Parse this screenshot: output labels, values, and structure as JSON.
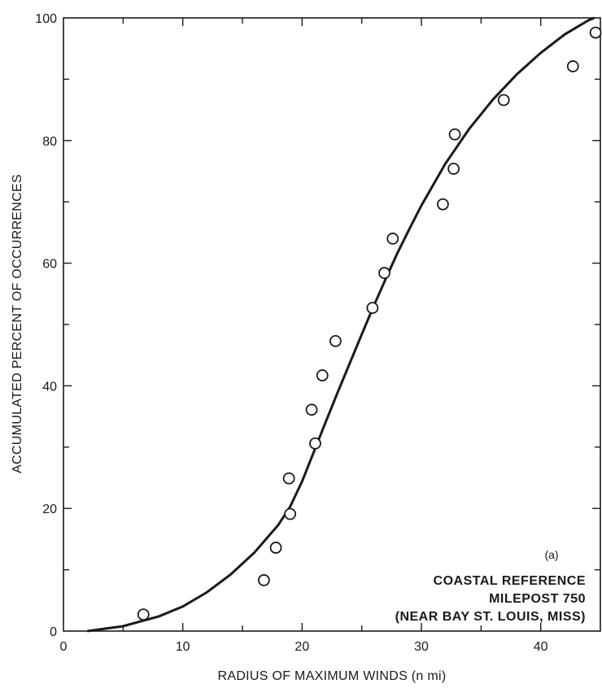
{
  "chart_data": {
    "type": "scatter",
    "xlabel": "RADIUS OF MAXIMUM WINDS (n mi)",
    "ylabel": "ACCUMULATED PERCENT OF OCCURRENCES",
    "xlim": [
      0,
      45
    ],
    "ylim": [
      0,
      100
    ],
    "x_ticks": [
      0,
      10,
      20,
      30,
      40
    ],
    "y_ticks": [
      0,
      20,
      40,
      60,
      80,
      100
    ],
    "x_tick_labels": [
      "0",
      "10",
      "20",
      "30",
      "40"
    ],
    "y_tick_labels": [
      "0",
      "20",
      "40",
      "60",
      "80",
      "100"
    ],
    "grid": false,
    "series": [
      {
        "marker": "open-circle",
        "points": [
          {
            "x": 6.7,
            "y": 2.7
          },
          {
            "x": 16.8,
            "y": 8.3
          },
          {
            "x": 17.8,
            "y": 13.6
          },
          {
            "x": 18.9,
            "y": 24.9
          },
          {
            "x": 19.0,
            "y": 19.1
          },
          {
            "x": 20.8,
            "y": 36.1
          },
          {
            "x": 21.1,
            "y": 30.6
          },
          {
            "x": 21.7,
            "y": 41.7
          },
          {
            "x": 22.8,
            "y": 47.3
          },
          {
            "x": 25.9,
            "y": 52.7
          },
          {
            "x": 26.9,
            "y": 58.4
          },
          {
            "x": 27.6,
            "y": 64.0
          },
          {
            "x": 31.8,
            "y": 69.6
          },
          {
            "x": 32.7,
            "y": 75.4
          },
          {
            "x": 32.8,
            "y": 81.0
          },
          {
            "x": 36.9,
            "y": 86.6
          },
          {
            "x": 42.7,
            "y": 92.1
          },
          {
            "x": 44.6,
            "y": 97.6
          }
        ]
      },
      {
        "style": "solid-curve",
        "points": [
          {
            "x": 2,
            "y": 0
          },
          {
            "x": 5,
            "y": 0.8
          },
          {
            "x": 8,
            "y": 2.4
          },
          {
            "x": 10,
            "y": 4.0
          },
          {
            "x": 12,
            "y": 6.3
          },
          {
            "x": 14,
            "y": 9.2
          },
          {
            "x": 16,
            "y": 12.8
          },
          {
            "x": 18,
            "y": 17.3
          },
          {
            "x": 19,
            "y": 20.3
          },
          {
            "x": 20,
            "y": 24.4
          },
          {
            "x": 21,
            "y": 29.3
          },
          {
            "x": 22,
            "y": 34.2
          },
          {
            "x": 23,
            "y": 39.0
          },
          {
            "x": 24,
            "y": 43.7
          },
          {
            "x": 25,
            "y": 48.4
          },
          {
            "x": 26,
            "y": 53.0
          },
          {
            "x": 27,
            "y": 57.4
          },
          {
            "x": 28,
            "y": 61.7
          },
          {
            "x": 29,
            "y": 65.6
          },
          {
            "x": 30,
            "y": 69.4
          },
          {
            "x": 32,
            "y": 76.2
          },
          {
            "x": 34,
            "y": 81.9
          },
          {
            "x": 36,
            "y": 86.7
          },
          {
            "x": 38,
            "y": 90.8
          },
          {
            "x": 40,
            "y": 94.3
          },
          {
            "x": 42,
            "y": 97.3
          },
          {
            "x": 44,
            "y": 99.6
          },
          {
            "x": 44.5,
            "y": 100
          }
        ]
      }
    ],
    "annotations": {
      "panel": "(a)",
      "line1": "COASTAL REFERENCE",
      "line2": "MILEPOST 750",
      "line3": "(NEAR BAY ST. LOUIS, MISS)"
    }
  }
}
